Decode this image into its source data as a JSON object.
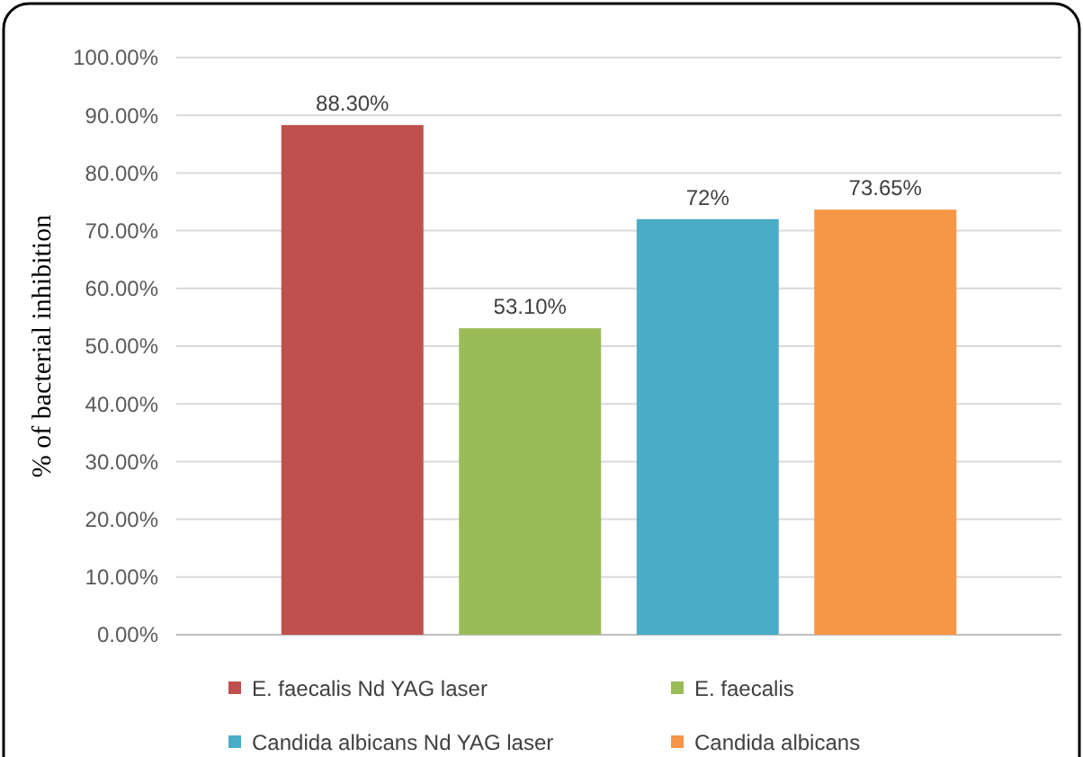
{
  "chart_data": {
    "type": "bar",
    "ylabel": "% of bacterial inhibition",
    "categories": [
      null
    ],
    "series": [
      {
        "name": "E. faecalis  Nd YAG laser",
        "color": "#c0504d",
        "values": [
          88.3
        ],
        "value_labels": [
          "88.30%"
        ]
      },
      {
        "name": "E. faecalis",
        "color": "#9bbb59",
        "values": [
          53.1
        ],
        "value_labels": [
          "53.10%"
        ]
      },
      {
        "name": "Candida albicans  Nd YAG laser",
        "color": "#4bacc6",
        "values": [
          72
        ],
        "value_labels": [
          "72%"
        ]
      },
      {
        "name": "Candida albicans",
        "color": "#f79646",
        "values": [
          73.65
        ],
        "value_labels": [
          "73.65%"
        ]
      }
    ],
    "ylim": [
      0,
      100
    ],
    "yticks": [
      {
        "value": 0,
        "label": "0.00%"
      },
      {
        "value": 10,
        "label": "10.00%"
      },
      {
        "value": 20,
        "label": "20.00%"
      },
      {
        "value": 30,
        "label": "30.00%"
      },
      {
        "value": 40,
        "label": "40.00%"
      },
      {
        "value": 50,
        "label": "50.00%"
      },
      {
        "value": 60,
        "label": "60.00%"
      },
      {
        "value": 70,
        "label": "70.00%"
      },
      {
        "value": 80,
        "label": "80.00%"
      },
      {
        "value": 90,
        "label": "90.00%"
      },
      {
        "value": 100,
        "label": "100.00%"
      }
    ],
    "grid": "y",
    "legend": "bottom"
  }
}
